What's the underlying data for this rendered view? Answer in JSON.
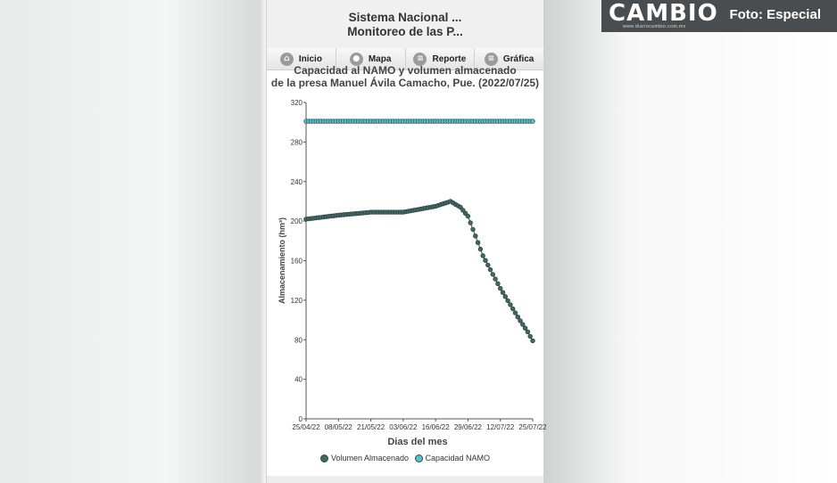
{
  "app": {
    "title_line1": "Sistema Nacional ...",
    "title_line2": "Monitoreo de las P..."
  },
  "nav": [
    {
      "label": "Inicio",
      "icon": "home-icon"
    },
    {
      "label": "Mapa",
      "icon": "map-pin-icon"
    },
    {
      "label": "Reporte",
      "icon": "menu-icon"
    },
    {
      "label": "Gráfica",
      "icon": "menu-icon"
    }
  ],
  "badge": {
    "logo": "CAMBIO",
    "url": "www.diariocambio.com.mx",
    "credit": "Foto: Especial"
  },
  "chart_data": {
    "type": "line",
    "title_line1": "Capacidad al NAMO y volumen almacenado",
    "title_line2": "de la presa Manuel Ávila Camacho, Pue. (2022/07/25)",
    "xlabel": "Dias del mes",
    "ylabel": "Almacenamiento (hm³)",
    "ylim": [
      0,
      320
    ],
    "yticks": [
      0,
      40,
      80,
      120,
      160,
      200,
      240,
      280,
      320
    ],
    "xticks": [
      "25/04/22",
      "08/05/22",
      "21/05/22",
      "03/06/22",
      "16/06/22",
      "29/06/22",
      "12/07/22",
      "25/07/22"
    ],
    "x_start": "2022-04-25",
    "x_end": "2022-07-25",
    "grid": false,
    "legend_position": "bottom",
    "series": [
      {
        "name": "Volumen Almacenado",
        "color": "#3a6b67",
        "keypoints": [
          [
            "2022-04-25",
            202
          ],
          [
            "2022-05-08",
            206
          ],
          [
            "2022-05-21",
            209
          ],
          [
            "2022-06-03",
            209
          ],
          [
            "2022-06-16",
            215
          ],
          [
            "2022-06-22",
            220
          ],
          [
            "2022-06-26",
            214
          ],
          [
            "2022-06-29",
            205
          ],
          [
            "2022-07-02",
            185
          ],
          [
            "2022-07-05",
            165
          ],
          [
            "2022-07-12",
            132
          ],
          [
            "2022-07-19",
            103
          ],
          [
            "2022-07-23",
            88
          ],
          [
            "2022-07-25",
            79
          ]
        ]
      },
      {
        "name": "Capacidad NAMO",
        "color": "#48c7d3",
        "keypoints": [
          [
            "2022-04-25",
            301
          ],
          [
            "2022-07-25",
            301
          ]
        ]
      }
    ]
  }
}
